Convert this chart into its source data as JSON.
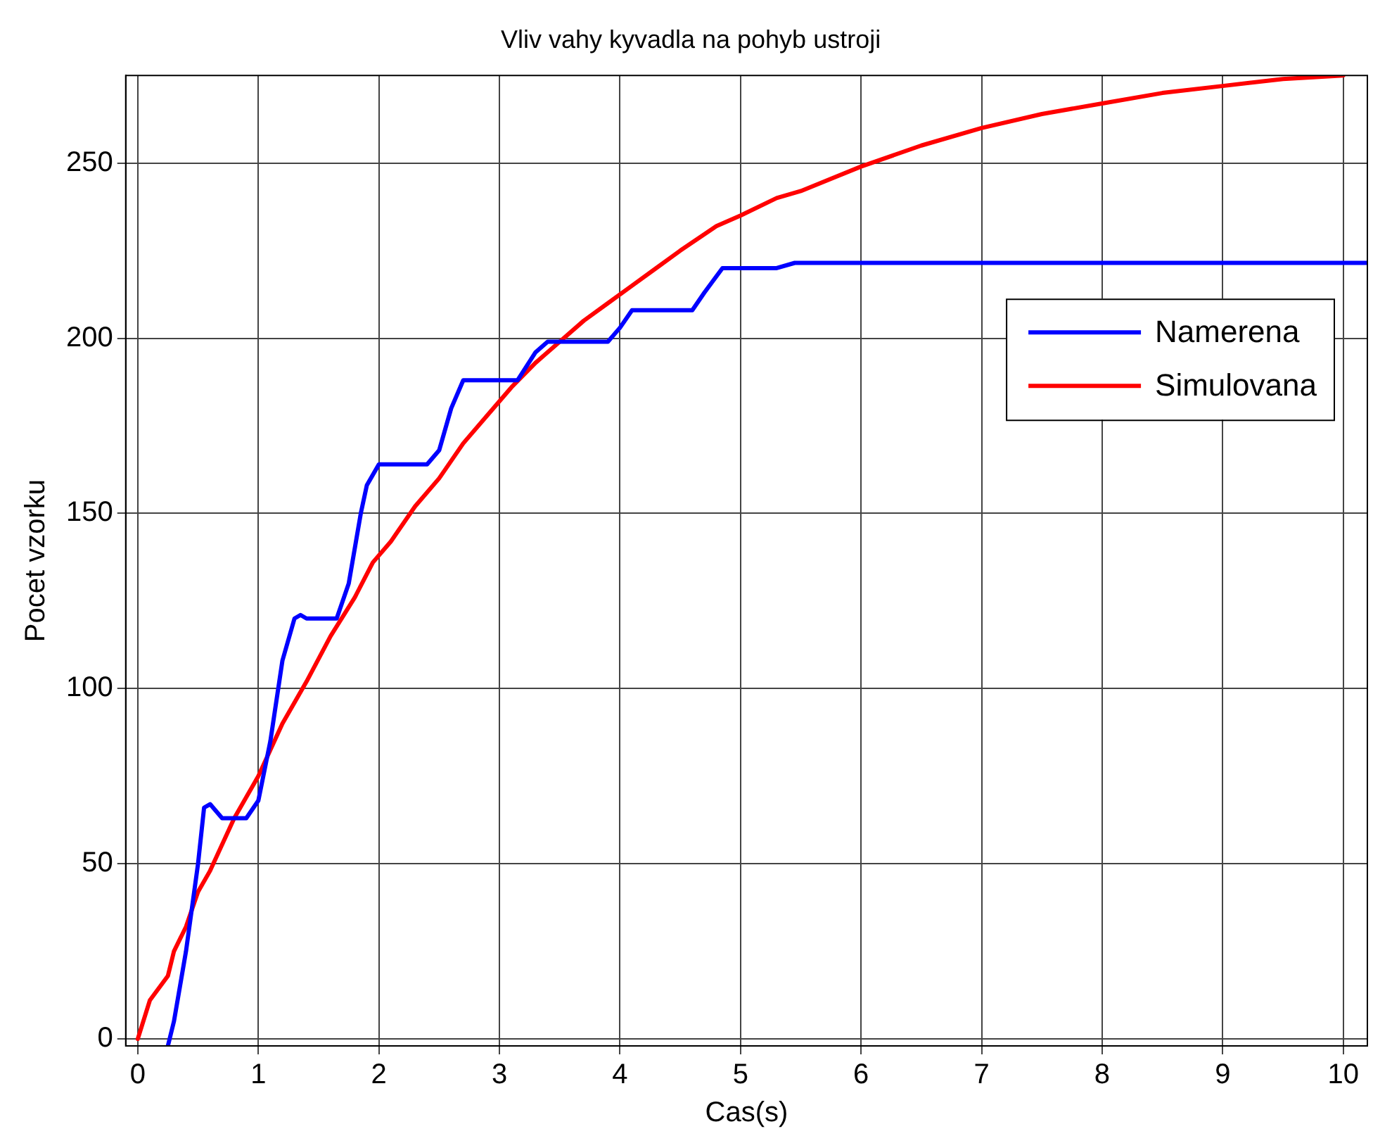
{
  "chart_data": {
    "type": "line",
    "title": "Vliv vahy kyvadla na pohyb ustroji",
    "xlabel": "Cas(s)",
    "ylabel": "Pocet vzorku",
    "xlim": [
      -0.1,
      10.2
    ],
    "xticks": [
      0,
      1,
      2,
      3,
      4,
      5,
      6,
      7,
      8,
      9,
      10
    ],
    "ylim": [
      -2,
      275
    ],
    "yticks": [
      0,
      50,
      100,
      150,
      200,
      250
    ],
    "grid": true,
    "legend": "right",
    "marker": "none",
    "line_style": "solid",
    "series": [
      {
        "name": "Namerena",
        "color": "#0000ff",
        "x": [
          0.25,
          0.3,
          0.4,
          0.5,
          0.55,
          0.6,
          0.7,
          0.9,
          1.0,
          1.1,
          1.2,
          1.3,
          1.35,
          1.4,
          1.65,
          1.75,
          1.85,
          1.9,
          2.0,
          2.4,
          2.5,
          2.6,
          2.7,
          3.15,
          3.3,
          3.4,
          3.9,
          4.0,
          4.1,
          4.6,
          4.7,
          4.85,
          5.3,
          5.45,
          10.2
        ],
        "values": [
          -2,
          5,
          25,
          50,
          66,
          67,
          63,
          63,
          68,
          85,
          108,
          120,
          121,
          120,
          120,
          130,
          150,
          158,
          164,
          164,
          168,
          180,
          188,
          188,
          196,
          199,
          199,
          203,
          208,
          208,
          213,
          220,
          220,
          221.5,
          221.5
        ]
      },
      {
        "name": "Simulovana",
        "color": "#ff0000",
        "x": [
          0,
          0.1,
          0.25,
          0.3,
          0.4,
          0.5,
          0.6,
          0.8,
          1.0,
          1.2,
          1.4,
          1.6,
          1.8,
          1.95,
          2.1,
          2.3,
          2.5,
          2.7,
          2.9,
          3.1,
          3.3,
          3.5,
          3.7,
          3.9,
          4.1,
          4.3,
          4.5,
          4.8,
          5.0,
          5.3,
          5.5,
          6.0,
          6.5,
          7.0,
          7.5,
          8.0,
          8.5,
          9.0,
          9.5,
          10.0
        ],
        "values": [
          0,
          11,
          18,
          25,
          32,
          42,
          48,
          63,
          75,
          90,
          102,
          115,
          126,
          136,
          142,
          152,
          160,
          170,
          178,
          186,
          193,
          199,
          205,
          210,
          215,
          220,
          225,
          232,
          235,
          240,
          242,
          249,
          255,
          260,
          264,
          267,
          270,
          272,
          274,
          275
        ]
      }
    ]
  }
}
